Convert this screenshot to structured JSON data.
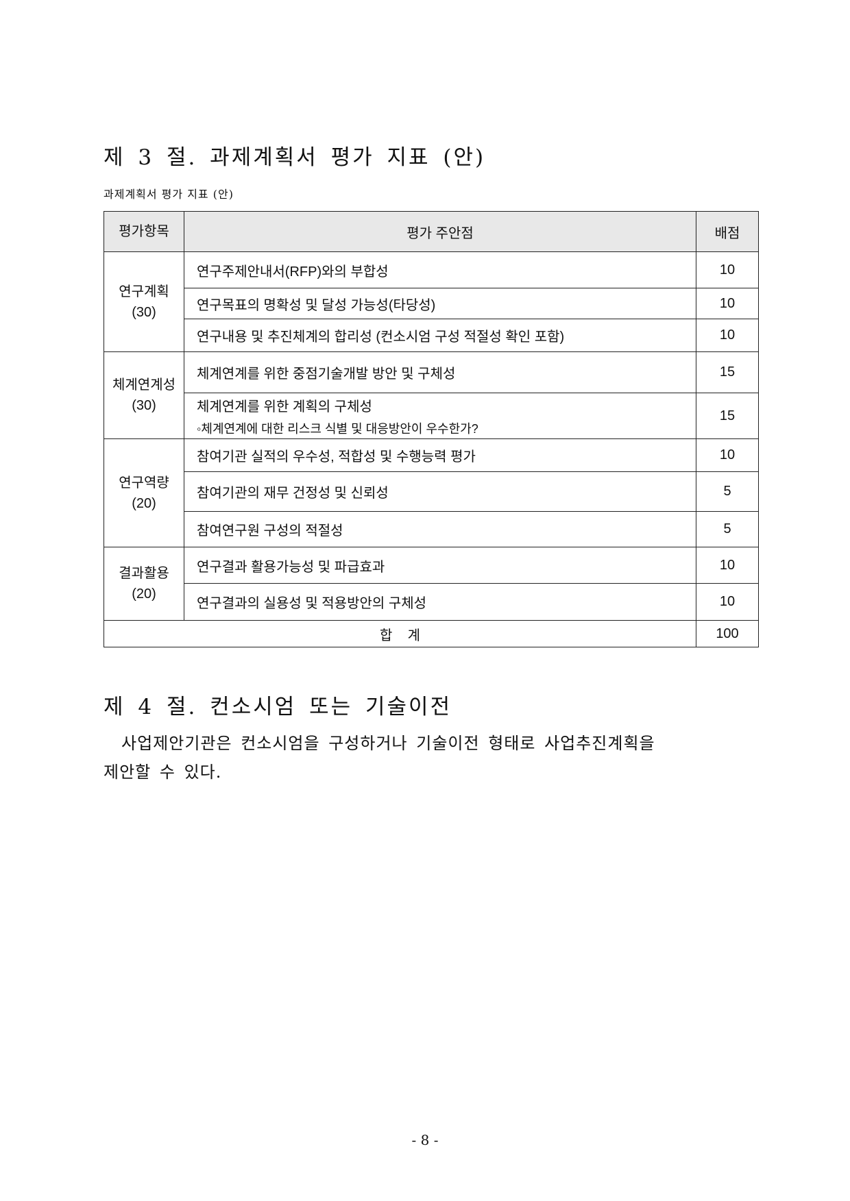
{
  "section3": {
    "heading": "제 3 절. 과제계획서 평가 지표 (안)",
    "caption": "과제계획서 평가 지표 (안)"
  },
  "table": {
    "headers": [
      "평가항목",
      "평가 주안점",
      "배점"
    ],
    "groups": [
      {
        "name": "연구계획",
        "points": "(30)",
        "rows": [
          {
            "text": "연구주제안내서(RFP)와의 부합성",
            "score": "10"
          },
          {
            "text": "연구목표의 명확성 및 달성 가능성(타당성)",
            "score": "10"
          },
          {
            "text": "연구내용 및 추진체계의 합리성 (컨소시엄 구성 적절성 확인 포함)",
            "score": "10"
          }
        ]
      },
      {
        "name": "체계연계성",
        "points": "(30)",
        "rows": [
          {
            "text": "체계연계를 위한 중점기술개발 방안 및 구체성",
            "score": "15"
          },
          {
            "text": "체계연계를 위한 계획의 구체성",
            "sub": "◦체계연계에 대한 리스크 식별 및 대응방안이 우수한가?",
            "score": "15"
          }
        ]
      },
      {
        "name": "연구역량",
        "points": "(20)",
        "rows": [
          {
            "text": "참여기관 실적의 우수성, 적합성 및 수행능력 평가",
            "score": "10"
          },
          {
            "text": "참여기관의 재무 건정성 및 신뢰성",
            "score": "5"
          },
          {
            "text": "참여연구원 구성의 적절성",
            "score": "5"
          }
        ]
      },
      {
        "name": "결과활용",
        "points": "(20)",
        "rows": [
          {
            "text": "연구결과 활용가능성 및 파급효과",
            "score": "10"
          },
          {
            "text": "연구결과의 실용성 및 적용방안의 구체성",
            "score": "10"
          }
        ]
      }
    ],
    "total_label": "합    계",
    "total_score": "100"
  },
  "section4": {
    "heading": "제 4 절. 컨소시엄 또는 기술이전",
    "line1": "사업제안기관은 컨소시엄을 구성하거나 기술이전 형태로 사업추진계획을",
    "line2": "제안할 수 있다."
  },
  "page_number": "- 8 -"
}
